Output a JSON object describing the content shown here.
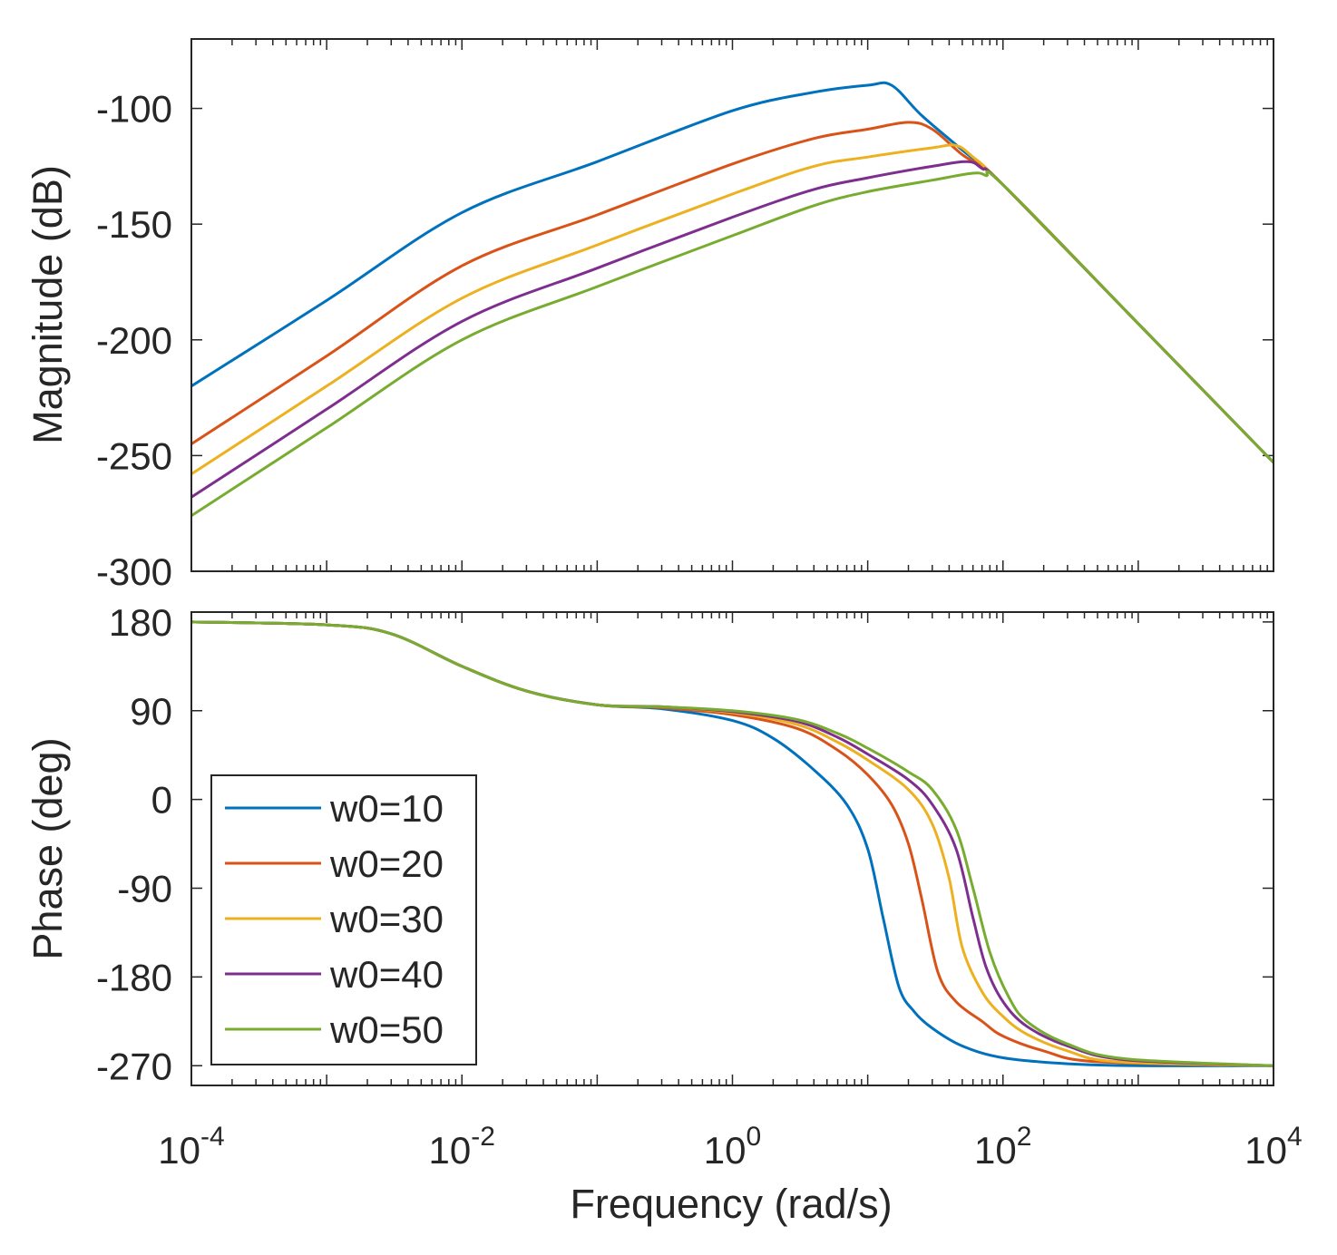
{
  "chart_data": [
    {
      "panel": "magnitude",
      "type": "line",
      "ylabel": "Magnitude (dB)",
      "xscale": "log",
      "xlim": [
        0.0001,
        10000
      ],
      "ylim": [
        -300,
        -70
      ],
      "yticks": [
        -300,
        -250,
        -200,
        -150,
        -100
      ],
      "ytick_labels": [
        "-300",
        "-250",
        "-200",
        "-150",
        "-100"
      ],
      "series": [
        {
          "name": "w0=10",
          "color": "#0072BD",
          "x": [
            0.0001,
            0.001,
            0.01,
            0.1,
            1,
            4,
            10,
            15,
            25,
            50,
            100,
            1000,
            10000
          ],
          "y": [
            -220,
            -183,
            -145,
            -123,
            -101,
            -93,
            -90,
            -90,
            -103,
            -118,
            -133,
            -193,
            -253
          ]
        },
        {
          "name": "w0=20",
          "color": "#D95319",
          "x": [
            0.0001,
            0.001,
            0.01,
            0.1,
            1,
            4,
            10,
            20,
            30,
            50,
            100,
            1000,
            10000
          ],
          "y": [
            -245,
            -207,
            -168,
            -146,
            -124,
            -113,
            -109,
            -106,
            -109,
            -120,
            -133,
            -193,
            -253
          ]
        },
        {
          "name": "w0=30",
          "color": "#EDB120",
          "x": [
            0.0001,
            0.001,
            0.01,
            0.1,
            1,
            4,
            10,
            30,
            45,
            60,
            100,
            1000,
            10000
          ],
          "y": [
            -258,
            -220,
            -182,
            -159,
            -137,
            -125,
            -121,
            -117,
            -116,
            -121,
            -133,
            -193,
            -253
          ]
        },
        {
          "name": "w0=40",
          "color": "#7E2F8E",
          "x": [
            0.0001,
            0.001,
            0.01,
            0.1,
            1,
            4,
            10,
            30,
            55,
            70,
            100,
            1000,
            10000
          ],
          "y": [
            -268,
            -230,
            -192,
            -169,
            -147,
            -135,
            -130,
            -125,
            -123,
            -126,
            -133,
            -193,
            -253
          ]
        },
        {
          "name": "w0=50",
          "color": "#77AC30",
          "x": [
            0.0001,
            0.001,
            0.01,
            0.1,
            1,
            4,
            10,
            30,
            60,
            75,
            100,
            1000,
            10000
          ],
          "y": [
            -276,
            -238,
            -200,
            -177,
            -155,
            -142,
            -136,
            -131,
            -128,
            -129,
            -133,
            -193,
            -253
          ]
        }
      ]
    },
    {
      "panel": "phase",
      "type": "line",
      "ylabel": "Phase (deg)",
      "xlabel": "Frequency  (rad/s)",
      "xscale": "log",
      "xlim": [
        0.0001,
        10000
      ],
      "ylim": [
        -290,
        190
      ],
      "yticks": [
        180,
        90,
        0,
        -90,
        -180,
        -270
      ],
      "ytick_labels": [
        "180",
        "90",
        "0",
        "-90",
        "-180",
        "-270"
      ],
      "xticks": [
        {
          "base": "10",
          "exp": "-4",
          "value": 0.0001
        },
        {
          "base": "10",
          "exp": "-2",
          "value": 0.01
        },
        {
          "base": "10",
          "exp": "0",
          "value": 1
        },
        {
          "base": "10",
          "exp": "2",
          "value": 100
        },
        {
          "base": "10",
          "exp": "4",
          "value": 10000
        }
      ],
      "legend": "bottom-left",
      "series": [
        {
          "name": "w0=10",
          "color": "#0072BD",
          "x": [
            0.0001,
            0.001,
            0.003,
            0.01,
            0.03,
            0.1,
            0.3,
            1,
            2,
            4,
            7,
            10,
            13,
            17,
            22,
            30,
            50,
            100,
            300,
            1000,
            10000
          ],
          "y": [
            180,
            177,
            168,
            135,
            110,
            96,
            92,
            80,
            62,
            30,
            -5,
            -50,
            -120,
            -190,
            -215,
            -232,
            -250,
            -262,
            -268,
            -270,
            -270
          ]
        },
        {
          "name": "w0=20",
          "color": "#D95319",
          "x": [
            0.0001,
            0.001,
            0.003,
            0.01,
            0.03,
            0.1,
            0.3,
            1,
            3,
            6,
            10,
            15,
            20,
            25,
            33,
            45,
            70,
            100,
            200,
            500,
            10000
          ],
          "y": [
            180,
            177,
            168,
            135,
            110,
            96,
            93,
            86,
            72,
            50,
            25,
            -5,
            -45,
            -100,
            -175,
            -205,
            -225,
            -240,
            -255,
            -266,
            -270
          ]
        },
        {
          "name": "w0=30",
          "color": "#EDB120",
          "x": [
            0.0001,
            0.001,
            0.003,
            0.01,
            0.03,
            0.1,
            0.3,
            1,
            3,
            6,
            10,
            20,
            30,
            40,
            50,
            70,
            100,
            150,
            300,
            700,
            10000
          ],
          "y": [
            180,
            177,
            168,
            135,
            110,
            96,
            94,
            88,
            76,
            58,
            40,
            10,
            -25,
            -80,
            -150,
            -195,
            -220,
            -238,
            -255,
            -266,
            -270
          ]
        },
        {
          "name": "w0=40",
          "color": "#7E2F8E",
          "x": [
            0.0001,
            0.001,
            0.003,
            0.01,
            0.03,
            0.1,
            0.3,
            1,
            3,
            6,
            10,
            20,
            30,
            45,
            60,
            75,
            100,
            150,
            300,
            800,
            10000
          ],
          "y": [
            180,
            177,
            168,
            135,
            110,
            96,
            94,
            89,
            79,
            63,
            46,
            20,
            -5,
            -50,
            -120,
            -170,
            -205,
            -230,
            -250,
            -264,
            -270
          ]
        },
        {
          "name": "w0=50",
          "color": "#77AC30",
          "x": [
            0.0001,
            0.001,
            0.003,
            0.01,
            0.03,
            0.1,
            0.3,
            1,
            3,
            6,
            10,
            20,
            30,
            45,
            60,
            80,
            110,
            150,
            300,
            800,
            10000
          ],
          "y": [
            180,
            177,
            168,
            135,
            110,
            96,
            94,
            90,
            81,
            67,
            52,
            28,
            10,
            -30,
            -90,
            -155,
            -200,
            -225,
            -248,
            -263,
            -270
          ]
        }
      ]
    }
  ]
}
